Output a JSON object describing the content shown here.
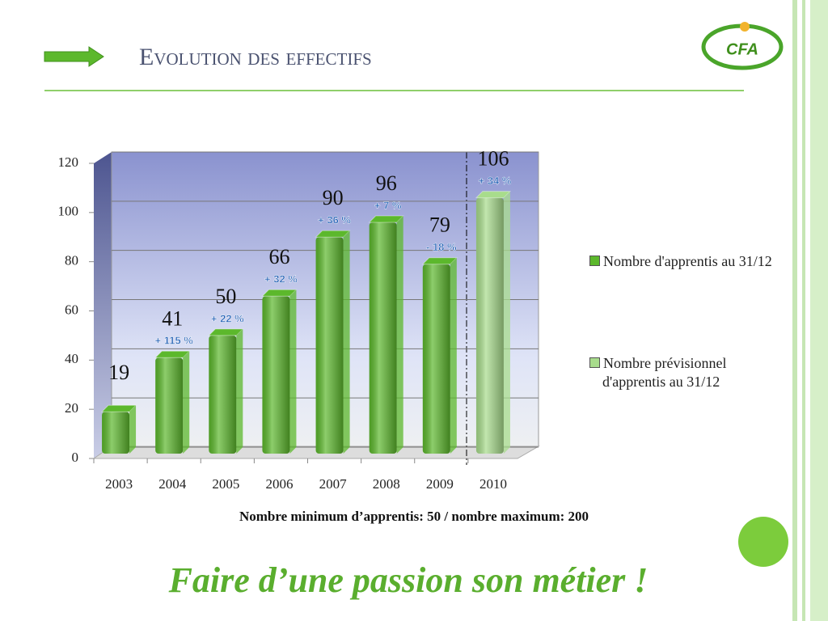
{
  "slide": {
    "title": "Evolution des effectifs",
    "logo": "CFA",
    "note": "Nombre minimum d’apprentis: 50 / nombre maximum: 200",
    "tagline": "Faire d’une passion son métier !"
  },
  "chart_data": {
    "type": "bar",
    "categories": [
      "2003",
      "2004",
      "2005",
      "2006",
      "2007",
      "2008",
      "2009",
      "2010"
    ],
    "series": [
      {
        "name": "Nombre d'apprentis au 31/12",
        "color": "#5cb82c",
        "values": [
          19,
          41,
          50,
          66,
          90,
          96,
          79,
          null
        ]
      },
      {
        "name": "Nombre prévisionnel d'apprentis au 31/12",
        "color": "#a8dc8c",
        "values": [
          null,
          null,
          null,
          null,
          null,
          null,
          null,
          106
        ]
      }
    ],
    "annotations": [
      null,
      "+ 115 %",
      "+ 22 %",
      "+ 32 %",
      "+ 36 %",
      "+ 7 %",
      "- 18 %",
      "+ 34 %"
    ],
    "ylim": [
      0,
      120
    ],
    "yticks": [
      0,
      20,
      40,
      60,
      80,
      100,
      120
    ],
    "grid": true,
    "legend": "right"
  }
}
